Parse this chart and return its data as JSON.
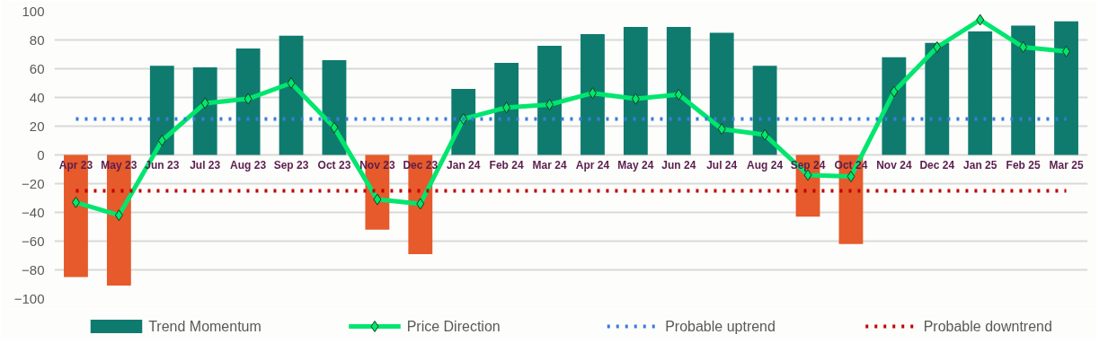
{
  "chart_data": {
    "type": "bar",
    "categories": [
      "Apr 23",
      "May 23",
      "Jun 23",
      "Jul 23",
      "Aug 23",
      "Sep 23",
      "Oct 23",
      "Nov 23",
      "Dec 23",
      "Jan 24",
      "Feb 24",
      "Mar 24",
      "Apr 24",
      "May 24",
      "Jun 24",
      "Jul 24",
      "Aug 24",
      "Sep 24",
      "Oct 24",
      "Nov 24",
      "Dec 24",
      "Jan 25",
      "Feb 25",
      "Mar 25"
    ],
    "series": [
      {
        "name": "Trend Momentum",
        "color": "#0f7b6f",
        "colors": [
          "#e65a2b",
          "#e65a2b",
          "#0f7b6f",
          "#0f7b6f",
          "#0f7b6f",
          "#0f7b6f",
          "#0f7b6f",
          "#e65a2b",
          "#e65a2b",
          "#0f7b6f",
          "#0f7b6f",
          "#0f7b6f",
          "#0f7b6f",
          "#0f7b6f",
          "#0f7b6f",
          "#0f7b6f",
          "#0f7b6f",
          "#e65a2b",
          "#e65a2b",
          "#0f7b6f",
          "#0f7b6f",
          "#0f7b6f",
          "#0f7b6f",
          "#0f7b6f"
        ],
        "values": [
          -85,
          -91,
          62,
          61,
          74,
          83,
          66,
          -52,
          -69,
          46,
          64,
          76,
          84,
          89,
          89,
          85,
          62,
          -43,
          -62,
          68,
          78,
          86,
          90,
          93
        ]
      },
      {
        "name": "Price Direction",
        "type": "line",
        "color": "#00e66e",
        "marker": "diamond",
        "values": [
          -33,
          -42,
          10,
          36,
          39,
          50,
          19,
          -31,
          -34,
          25,
          33,
          35,
          43,
          39,
          42,
          18,
          14,
          -14,
          -15,
          44,
          75,
          94,
          75,
          72
        ]
      }
    ],
    "ref_lines": [
      {
        "axis": "y",
        "value": 25,
        "label": "Probable uptrend",
        "color": "#3a7be0",
        "line_style": "dotted"
      },
      {
        "axis": "y",
        "value": -25,
        "label": "Probable downtrend",
        "color": "#c00000",
        "line_style": "dotted"
      }
    ],
    "ylim": [
      -100,
      100
    ],
    "yticks": [
      -100,
      -80,
      -60,
      -40,
      -20,
      0,
      20,
      40,
      60,
      80,
      100
    ],
    "grid": "y",
    "legend": "bottom"
  }
}
